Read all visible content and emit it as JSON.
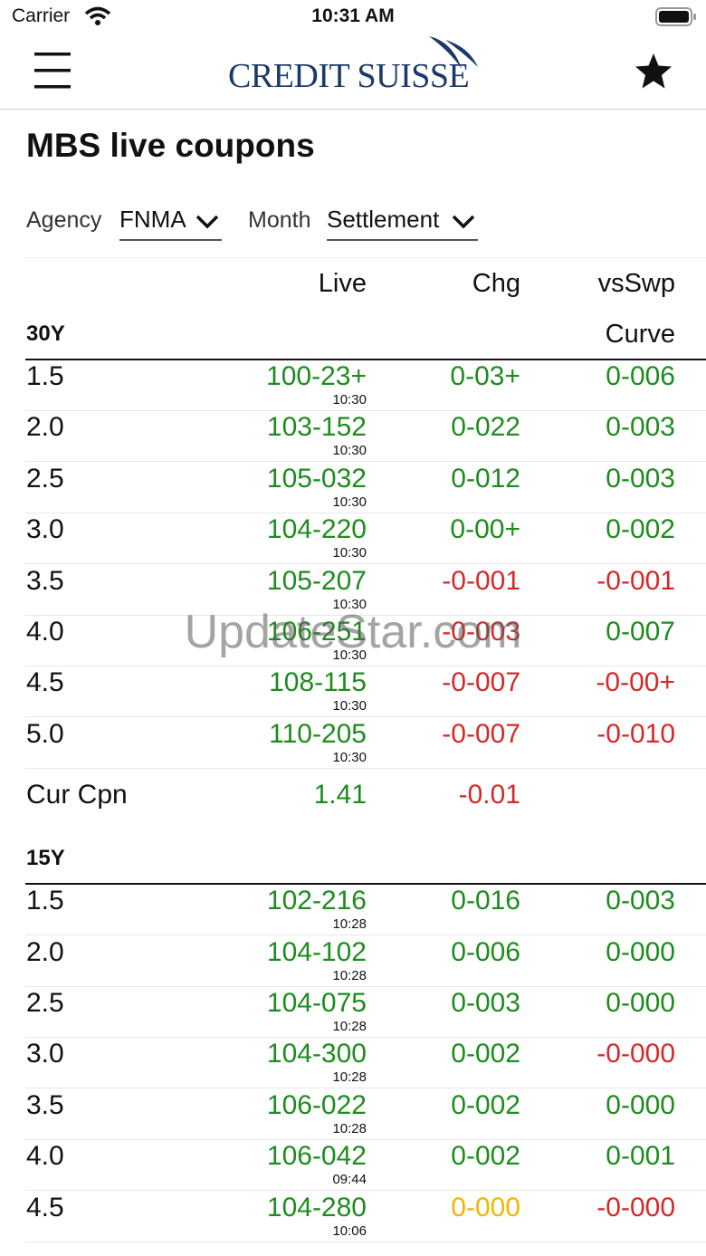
{
  "status_bar": {
    "carrier": "Carrier",
    "time": "10:31 AM"
  },
  "header": {
    "logo": "CREDIT SUISSE"
  },
  "page": {
    "title": "MBS live coupons"
  },
  "filters": [
    {
      "label": "Agency",
      "value": "FNMA"
    },
    {
      "label": "Month",
      "value": "Settlement"
    }
  ],
  "table": {
    "columns": [
      "Live",
      "Chg",
      "vsSwp"
    ],
    "columns_second_line": "Curve",
    "sections": [
      {
        "title": "30Y",
        "rows": [
          {
            "coupon": "1.5",
            "live": {
              "text": "100-23+",
              "time": "10:30",
              "color": "#1e8c1e"
            },
            "chg": {
              "text": "0-03+",
              "color": "#1e8c1e"
            },
            "vs_swap": {
              "text": "0-006",
              "color": "#1e8c1e"
            }
          },
          {
            "coupon": "2.0",
            "live": {
              "text": "103-152",
              "time": "10:30",
              "color": "#1e8c1e"
            },
            "chg": {
              "text": "0-022",
              "color": "#1e8c1e"
            },
            "vs_swap": {
              "text": "0-003",
              "color": "#1e8c1e"
            }
          },
          {
            "coupon": "2.5",
            "live": {
              "text": "105-032",
              "time": "10:30",
              "color": "#1e8c1e"
            },
            "chg": {
              "text": "0-012",
              "color": "#1e8c1e"
            },
            "vs_swap": {
              "text": "0-003",
              "color": "#1e8c1e"
            }
          },
          {
            "coupon": "3.0",
            "live": {
              "text": "104-220",
              "time": "10:30",
              "color": "#1e8c1e"
            },
            "chg": {
              "text": "0-00+",
              "color": "#1e8c1e"
            },
            "vs_swap": {
              "text": "0-002",
              "color": "#1e8c1e"
            }
          },
          {
            "coupon": "3.5",
            "live": {
              "text": "105-207",
              "time": "10:30",
              "color": "#1e8c1e"
            },
            "chg": {
              "text": "-0-001",
              "color": "#d42a2a"
            },
            "vs_swap": {
              "text": "-0-001",
              "color": "#d42a2a"
            }
          },
          {
            "coupon": "4.0",
            "live": {
              "text": "106-251",
              "time": "10:30",
              "color": "#1e8c1e"
            },
            "chg": {
              "text": "-0-003",
              "color": "#d42a2a"
            },
            "vs_swap": {
              "text": "0-007",
              "color": "#1e8c1e"
            }
          },
          {
            "coupon": "4.5",
            "live": {
              "text": "108-115",
              "time": "10:30",
              "color": "#1e8c1e"
            },
            "chg": {
              "text": "-0-007",
              "color": "#d42a2a"
            },
            "vs_swap": {
              "text": "-0-00+",
              "color": "#d42a2a"
            }
          },
          {
            "coupon": "5.0",
            "live": {
              "text": "110-205",
              "time": "10:30",
              "color": "#1e8c1e"
            },
            "chg": {
              "text": "-0-007",
              "color": "#d42a2a"
            },
            "vs_swap": {
              "text": "-0-010",
              "color": "#d42a2a"
            }
          }
        ],
        "current_coupon": {
          "label": "Cur Cpn",
          "live": {
            "text": "1.41",
            "color": "#1e8c1e"
          },
          "chg": {
            "text": "-0.01",
            "color": "#d42a2a"
          }
        }
      },
      {
        "title": "15Y",
        "rows": [
          {
            "coupon": "1.5",
            "live": {
              "text": "102-216",
              "time": "10:28",
              "color": "#1e8c1e"
            },
            "chg": {
              "text": "0-016",
              "color": "#1e8c1e"
            },
            "vs_swap": {
              "text": "0-003",
              "color": "#1e8c1e"
            }
          },
          {
            "coupon": "2.0",
            "live": {
              "text": "104-102",
              "time": "10:28",
              "color": "#1e8c1e"
            },
            "chg": {
              "text": "0-006",
              "color": "#1e8c1e"
            },
            "vs_swap": {
              "text": "0-000",
              "color": "#1e8c1e"
            }
          },
          {
            "coupon": "2.5",
            "live": {
              "text": "104-075",
              "time": "10:28",
              "color": "#1e8c1e"
            },
            "chg": {
              "text": "0-003",
              "color": "#1e8c1e"
            },
            "vs_swap": {
              "text": "0-000",
              "color": "#1e8c1e"
            }
          },
          {
            "coupon": "3.0",
            "live": {
              "text": "104-300",
              "time": "10:28",
              "color": "#1e8c1e"
            },
            "chg": {
              "text": "0-002",
              "color": "#1e8c1e"
            },
            "vs_swap": {
              "text": "-0-000",
              "color": "#d42a2a"
            }
          },
          {
            "coupon": "3.5",
            "live": {
              "text": "106-022",
              "time": "10:28",
              "color": "#1e8c1e"
            },
            "chg": {
              "text": "0-002",
              "color": "#1e8c1e"
            },
            "vs_swap": {
              "text": "0-000",
              "color": "#1e8c1e"
            }
          },
          {
            "coupon": "4.0",
            "live": {
              "text": "106-042",
              "time": "09:44",
              "color": "#1e8c1e"
            },
            "chg": {
              "text": "0-002",
              "color": "#1e8c1e"
            },
            "vs_swap": {
              "text": "0-001",
              "color": "#1e8c1e"
            }
          },
          {
            "coupon": "4.5",
            "live": {
              "text": "104-280",
              "time": "10:06",
              "color": "#1e8c1e"
            },
            "chg": {
              "text": "0-000",
              "color": "#f2b600"
            },
            "vs_swap": {
              "text": "-0-000",
              "color": "#d42a2a"
            }
          }
        ]
      }
    ]
  },
  "watermark": "UpdateStar.com"
}
